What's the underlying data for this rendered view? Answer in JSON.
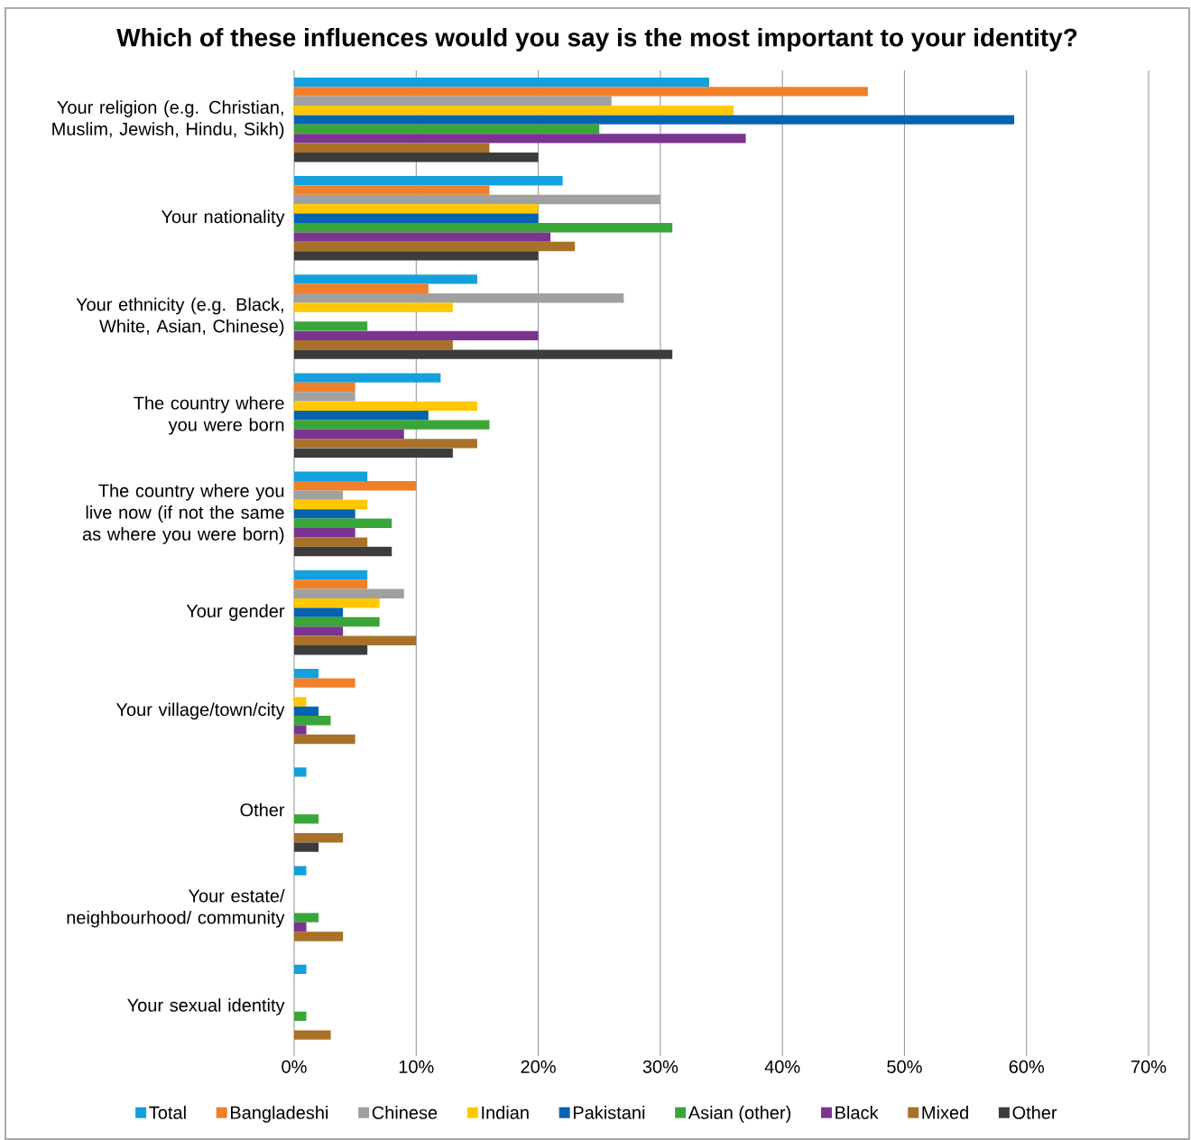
{
  "chart_data": {
    "type": "bar",
    "orientation": "horizontal",
    "title": "Which of these influences would you say is the most important to your identity?",
    "categories": [
      "Your religion (e.g. Christian, Muslim, Jewish, Hindu, Sikh)",
      "Your nationality",
      "Your ethnicity (e.g. Black, White, Asian, Chinese)",
      "The country where you were born",
      "The country where you live now (if not the same as where you were born)",
      "Your gender",
      "Your village/town/city",
      "Other",
      "Your estate/ neighbourhood/ community",
      "Your sexual identity"
    ],
    "series": [
      {
        "name": "Total",
        "color": "#14a0dc",
        "values": [
          34,
          22,
          15,
          12,
          6,
          6,
          2,
          1,
          1,
          1
        ]
      },
      {
        "name": "Bangladeshi",
        "color": "#f07f2a",
        "values": [
          47,
          16,
          11,
          5,
          10,
          6,
          5,
          0,
          0,
          0
        ]
      },
      {
        "name": "Chinese",
        "color": "#a0a0a0",
        "values": [
          26,
          30,
          27,
          5,
          4,
          9,
          0,
          0,
          0,
          0
        ]
      },
      {
        "name": "Indian",
        "color": "#ffc800",
        "values": [
          36,
          20,
          13,
          15,
          6,
          7,
          1,
          0,
          0,
          0
        ]
      },
      {
        "name": "Pakistani",
        "color": "#0563b0",
        "values": [
          59,
          20,
          0,
          11,
          5,
          4,
          2,
          0,
          0,
          0
        ]
      },
      {
        "name": "Asian (other)",
        "color": "#3aa63a",
        "values": [
          25,
          31,
          6,
          16,
          8,
          7,
          3,
          2,
          2,
          1
        ]
      },
      {
        "name": "Black",
        "color": "#7b3490",
        "values": [
          37,
          21,
          20,
          9,
          5,
          4,
          1,
          0,
          1,
          0
        ]
      },
      {
        "name": "Mixed",
        "color": "#a8712a",
        "values": [
          16,
          23,
          13,
          15,
          6,
          10,
          5,
          4,
          4,
          3
        ]
      },
      {
        "name": "Other",
        "color": "#3c3c3c",
        "values": [
          20,
          20,
          31,
          13,
          8,
          6,
          0,
          2,
          0,
          0
        ]
      }
    ],
    "xlim": [
      0,
      70
    ],
    "xticks": [
      {
        "value": 0,
        "label": "0%"
      },
      {
        "value": 10,
        "label": "10%"
      },
      {
        "value": 20,
        "label": "20%"
      },
      {
        "value": 30,
        "label": "30%"
      },
      {
        "value": 40,
        "label": "40%"
      },
      {
        "value": 50,
        "label": "50%"
      },
      {
        "value": 60,
        "label": "60%"
      },
      {
        "value": 70,
        "label": "70%"
      }
    ],
    "grid": "x",
    "legend": "bottom"
  }
}
